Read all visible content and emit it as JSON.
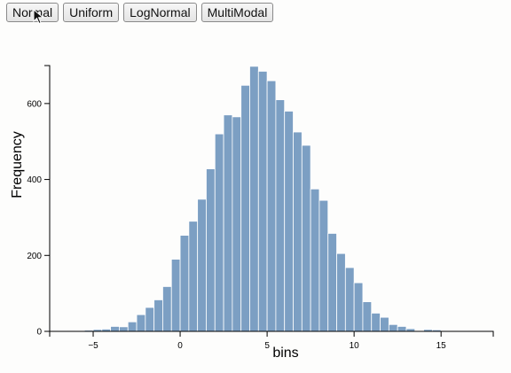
{
  "toolbar": {
    "buttons": [
      {
        "label": "Normal"
      },
      {
        "label": "Uniform"
      },
      {
        "label": "LogNormal"
      },
      {
        "label": "MultiModal"
      }
    ]
  },
  "colors": {
    "bar_fill": "#7c9fc3",
    "bar_stroke": "#ffffff",
    "axis": "#000000"
  },
  "chart_data": {
    "type": "bar",
    "title": "",
    "xlabel": "bins",
    "ylabel": "Frequency",
    "xlim": [
      -7.5,
      18
    ],
    "ylim": [
      0,
      700
    ],
    "bin_width": 0.5,
    "x_ticks": [
      -5,
      0,
      5,
      10,
      15
    ],
    "y_ticks": [
      0,
      200,
      400,
      600
    ],
    "bins": [
      {
        "x0": -7.0,
        "count": 1
      },
      {
        "x0": -6.5,
        "count": 0
      },
      {
        "x0": -6.0,
        "count": 1
      },
      {
        "x0": -5.5,
        "count": 3
      },
      {
        "x0": -5.0,
        "count": 5
      },
      {
        "x0": -4.5,
        "count": 6
      },
      {
        "x0": -4.0,
        "count": 13
      },
      {
        "x0": -3.5,
        "count": 12
      },
      {
        "x0": -3.0,
        "count": 25
      },
      {
        "x0": -2.5,
        "count": 44
      },
      {
        "x0": -2.0,
        "count": 63
      },
      {
        "x0": -1.5,
        "count": 83
      },
      {
        "x0": -1.0,
        "count": 118
      },
      {
        "x0": -0.5,
        "count": 190
      },
      {
        "x0": 0.0,
        "count": 253
      },
      {
        "x0": 0.5,
        "count": 290
      },
      {
        "x0": 1.0,
        "count": 348
      },
      {
        "x0": 1.5,
        "count": 428
      },
      {
        "x0": 2.0,
        "count": 520
      },
      {
        "x0": 2.5,
        "count": 570
      },
      {
        "x0": 3.0,
        "count": 565
      },
      {
        "x0": 3.5,
        "count": 648
      },
      {
        "x0": 4.0,
        "count": 698
      },
      {
        "x0": 4.5,
        "count": 685
      },
      {
        "x0": 5.0,
        "count": 660
      },
      {
        "x0": 5.5,
        "count": 610
      },
      {
        "x0": 6.0,
        "count": 580
      },
      {
        "x0": 6.5,
        "count": 525
      },
      {
        "x0": 7.0,
        "count": 490
      },
      {
        "x0": 7.5,
        "count": 375
      },
      {
        "x0": 8.0,
        "count": 345
      },
      {
        "x0": 8.5,
        "count": 258
      },
      {
        "x0": 9.0,
        "count": 205
      },
      {
        "x0": 9.5,
        "count": 168
      },
      {
        "x0": 10.0,
        "count": 128
      },
      {
        "x0": 10.5,
        "count": 78
      },
      {
        "x0": 11.0,
        "count": 48
      },
      {
        "x0": 11.5,
        "count": 37
      },
      {
        "x0": 12.0,
        "count": 18
      },
      {
        "x0": 12.5,
        "count": 13
      },
      {
        "x0": 13.0,
        "count": 7
      },
      {
        "x0": 13.5,
        "count": 2
      },
      {
        "x0": 14.0,
        "count": 5
      },
      {
        "x0": 14.5,
        "count": 4
      },
      {
        "x0": 15.0,
        "count": 1
      },
      {
        "x0": 15.5,
        "count": 0
      },
      {
        "x0": 16.0,
        "count": 1
      }
    ]
  }
}
